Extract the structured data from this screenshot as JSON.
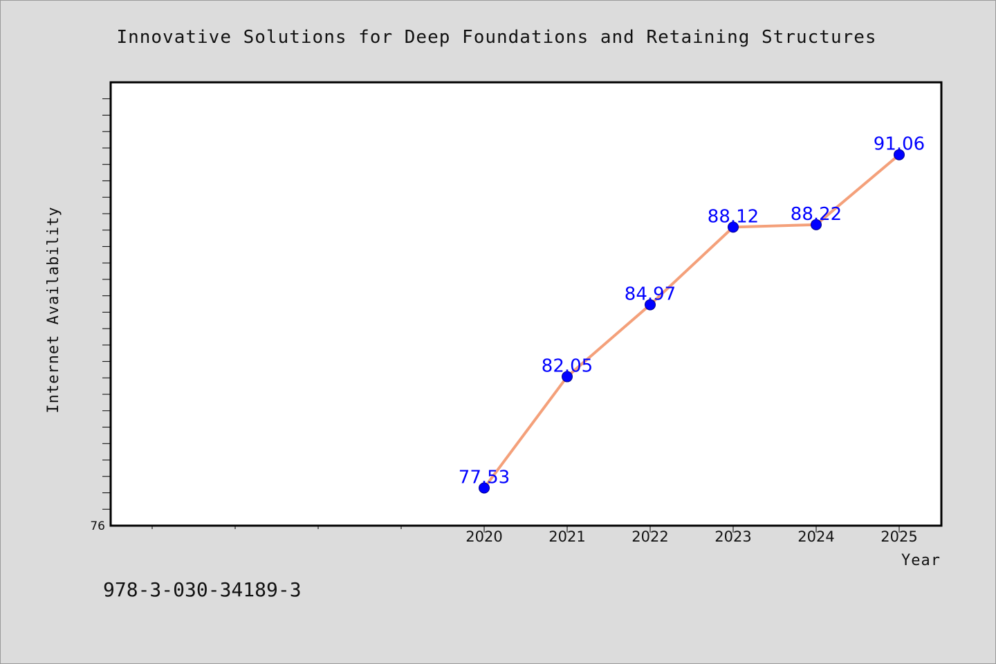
{
  "chart_data": {
    "type": "line",
    "title": "Innovative Solutions for Deep Foundations and Retaining Structures",
    "xlabel": "Year",
    "ylabel": "Internet Availability",
    "categories": [
      "2020",
      "2021",
      "2022",
      "2023",
      "2024",
      "2025"
    ],
    "series": [
      {
        "values": [
          77.53,
          82.05,
          84.97,
          88.12,
          88.22,
          91.06
        ]
      }
    ],
    "data_labels": [
      "77.53",
      "82.05",
      "84.97",
      "88.12",
      "88.22",
      "91.06"
    ],
    "ylim": [
      76,
      94
    ],
    "ytick_label": "76",
    "grid": false,
    "legend": "none",
    "line_color": "#f4a07a",
    "marker_color": "#0000ff",
    "label_color": "#0000ff"
  },
  "footnote": "978-3-030-34189-3"
}
